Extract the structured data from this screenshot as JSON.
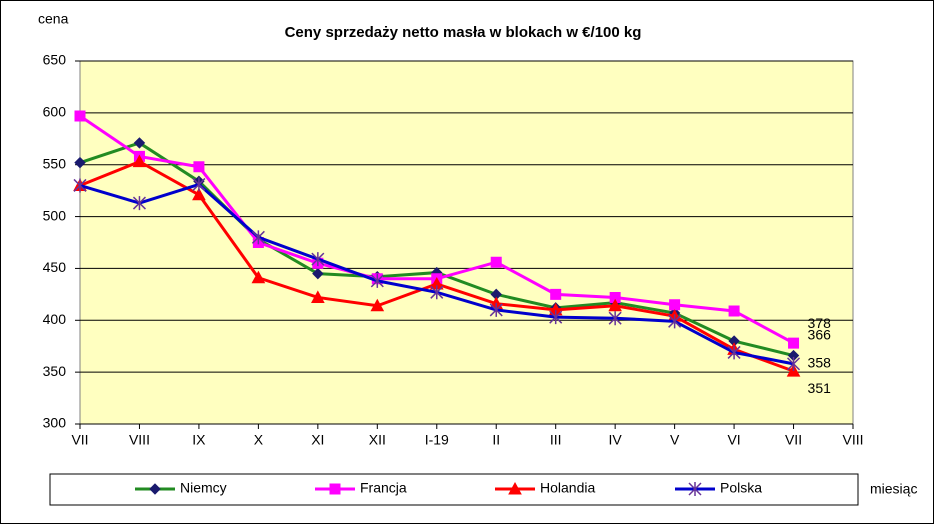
{
  "chart_data": {
    "type": "line",
    "title": "Ceny sprzedaży netto masła w blokach w €/100 kg",
    "y_label": "cena",
    "x_label": "miesiąc",
    "categories": [
      "VII",
      "VIII",
      "IX",
      "X",
      "XI",
      "XII",
      "I-19",
      "II",
      "III",
      "IV",
      "V",
      "VI",
      "VII",
      "VIII"
    ],
    "ylim": [
      300,
      650
    ],
    "yticks": [
      300,
      350,
      400,
      450,
      500,
      550,
      600,
      650
    ],
    "grid": true,
    "background": "#ffffc0",
    "legend": "bottom",
    "series": [
      {
        "name": "Niemcy",
        "color": "#228b22",
        "marker": "diamond",
        "marker_color": "#1a1a6e",
        "values": [
          552,
          571,
          534,
          478,
          445,
          442,
          446,
          425,
          412,
          417,
          407,
          380,
          366,
          null
        ]
      },
      {
        "name": "Francja",
        "color": "#ff00ff",
        "marker": "square",
        "marker_color": "#ff00ff",
        "values": [
          597,
          558,
          548,
          475,
          455,
          440,
          440,
          456,
          425,
          422,
          415,
          409,
          378,
          null
        ]
      },
      {
        "name": "Holandia",
        "color": "#ff0000",
        "marker": "triangle",
        "marker_color": "#ff0000",
        "values": [
          530,
          553,
          521,
          441,
          422,
          414,
          435,
          416,
          410,
          414,
          404,
          372,
          351,
          null
        ]
      },
      {
        "name": "Polska",
        "color": "#0000cc",
        "marker": "star",
        "marker_color": "#663399",
        "values": [
          530,
          513,
          531,
          480,
          459,
          438,
          427,
          410,
          403,
          402,
          399,
          369,
          358,
          null
        ]
      }
    ]
  }
}
